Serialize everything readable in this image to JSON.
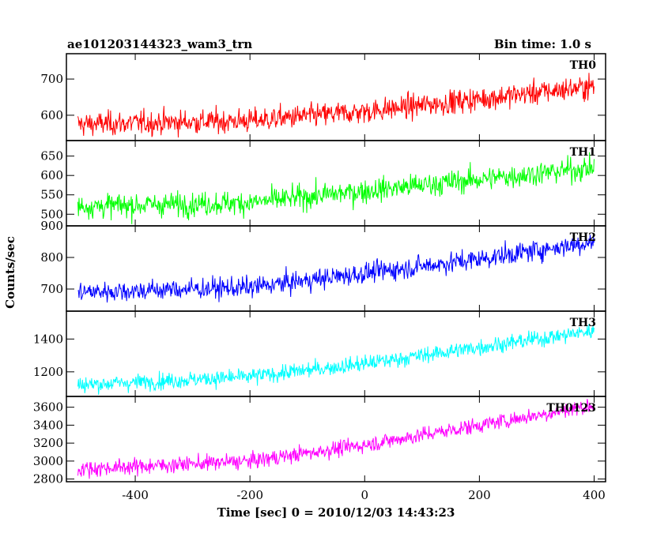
{
  "chart_data": {
    "type": "line",
    "title": "ae101203144323_wam3_trn",
    "subtitle": "Bin time: 1.0 s",
    "xlabel": "Time [sec] 0 = 2010/12/03 14:43:23",
    "ylabel": "Counts/sec",
    "xlim": [
      -520,
      420
    ],
    "xticks": [
      -400,
      -200,
      0,
      200,
      400
    ],
    "x_range": [
      -500,
      400
    ],
    "grid": false,
    "panels": [
      {
        "name": "TH0",
        "color": "#ff0000",
        "ylim": [
          530,
          770
        ],
        "yticks": [
          600,
          700
        ],
        "trend": [
          [
            -500,
            575
          ],
          [
            -200,
            585
          ],
          [
            0,
            610
          ],
          [
            200,
            645
          ],
          [
            400,
            680
          ]
        ],
        "noise": 30
      },
      {
        "name": "TH1",
        "color": "#00ff00",
        "ylim": [
          470,
          690
        ],
        "yticks": [
          500,
          550,
          600,
          650
        ],
        "trend": [
          [
            -500,
            520
          ],
          [
            -200,
            530
          ],
          [
            0,
            560
          ],
          [
            200,
            590
          ],
          [
            400,
            620
          ]
        ],
        "noise": 28
      },
      {
        "name": "TH2",
        "color": "#0000ff",
        "ylim": [
          630,
          900
        ],
        "yticks": [
          700,
          800,
          900
        ],
        "trend": [
          [
            -500,
            690
          ],
          [
            -200,
            705
          ],
          [
            0,
            750
          ],
          [
            200,
            795
          ],
          [
            400,
            850
          ]
        ],
        "noise": 30
      },
      {
        "name": "TH3",
        "color": "#00ffff",
        "ylim": [
          1050,
          1570
        ],
        "yticks": [
          1200,
          1400
        ],
        "trend": [
          [
            -500,
            1120
          ],
          [
            -200,
            1170
          ],
          [
            0,
            1250
          ],
          [
            200,
            1350
          ],
          [
            400,
            1450
          ]
        ],
        "noise": 45
      },
      {
        "name": "TH0123",
        "color": "#ff00ff",
        "ylim": [
          2770,
          3720
        ],
        "yticks": [
          2800,
          3000,
          3200,
          3400,
          3600
        ],
        "trend": [
          [
            -500,
            2910
          ],
          [
            -200,
            3000
          ],
          [
            0,
            3180
          ],
          [
            200,
            3400
          ],
          [
            400,
            3620
          ]
        ],
        "noise": 80
      }
    ]
  }
}
